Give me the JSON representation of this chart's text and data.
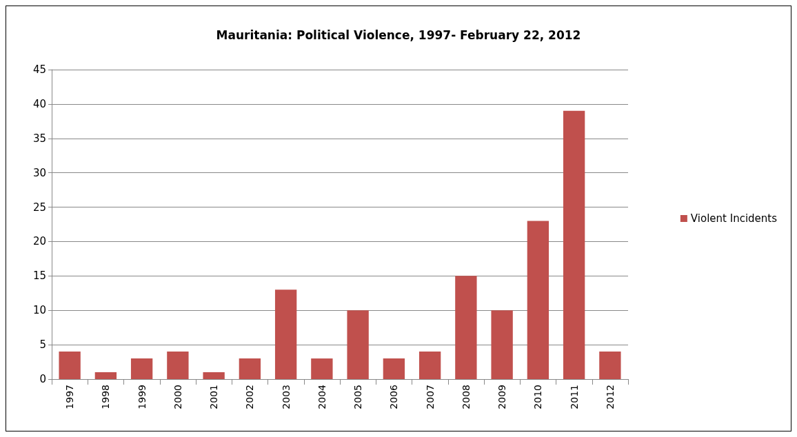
{
  "chart_data": {
    "type": "bar",
    "title": "Mauritania: Political Violence, 1997- February 22, 2012",
    "categories": [
      "1997",
      "1998",
      "1999",
      "2000",
      "2001",
      "2002",
      "2003",
      "2004",
      "2005",
      "2006",
      "2007",
      "2008",
      "2009",
      "2010",
      "2011",
      "2012"
    ],
    "series": [
      {
        "name": "Violent Incidents",
        "color": "#c0504d",
        "values": [
          4,
          1,
          3,
          4,
          1,
          3,
          13,
          3,
          10,
          3,
          4,
          15,
          10,
          23,
          39,
          4
        ]
      }
    ],
    "ylim": [
      0,
      45
    ],
    "yticks": [
      0,
      5,
      10,
      15,
      20,
      25,
      30,
      35,
      40,
      45
    ],
    "grid": "y",
    "legend": "right"
  }
}
